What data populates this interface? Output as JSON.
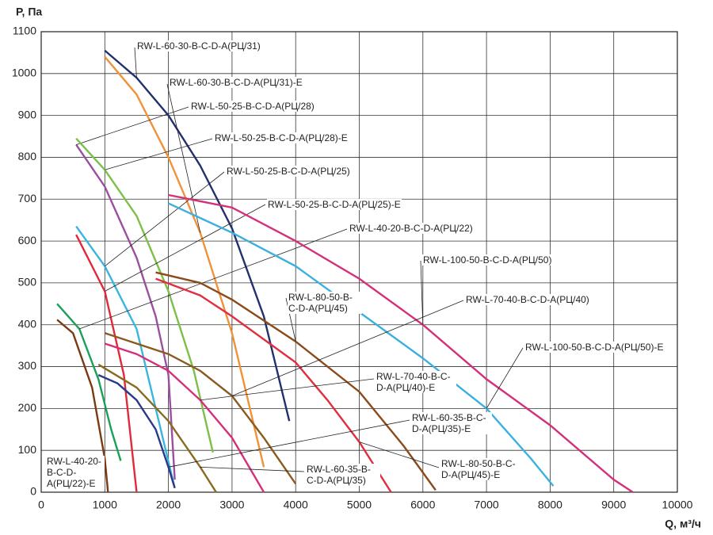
{
  "chart_data": {
    "type": "line",
    "ylabel": "P, Па",
    "xlabel": "Q, м³/ч",
    "xlim": [
      0,
      10000
    ],
    "xticks": [
      0,
      1000,
      2000,
      3000,
      4000,
      5000,
      6000,
      7000,
      8000,
      9000,
      10000
    ],
    "ylim": [
      0,
      1100
    ],
    "yticks": [
      0,
      100,
      200,
      300,
      400,
      500,
      600,
      700,
      800,
      900,
      1000,
      1100
    ],
    "grid": true,
    "series": [
      {
        "name": "RW-L-60-30-B-C-D-A(РЦ/31)",
        "color": "#22306e",
        "x": [
          1000,
          1500,
          2000,
          2500,
          3000,
          3500,
          3900
        ],
        "values": [
          1055,
          990,
          900,
          780,
          630,
          420,
          170
        ]
      },
      {
        "name": "RW-L-60-30-B-C-D-A(РЦ/31)-E",
        "color": "#f0923a",
        "x": [
          1000,
          1500,
          2000,
          2500,
          3000,
          3500
        ],
        "values": [
          1040,
          950,
          800,
          620,
          380,
          60
        ]
      },
      {
        "name": "RW-L-50-25-B-C-D-A(РЦ/28)",
        "color": "#9b4fa0",
        "x": [
          550,
          1000,
          1500,
          1800,
          2000,
          2100
        ],
        "values": [
          830,
          730,
          560,
          420,
          280,
          30
        ]
      },
      {
        "name": "RW-L-50-25-B-C-D-A(РЦ/28)-E",
        "color": "#7cc04a",
        "x": [
          550,
          1000,
          1500,
          2000,
          2400,
          2700
        ],
        "values": [
          845,
          770,
          660,
          480,
          290,
          95
        ]
      },
      {
        "name": "RW-L-50-25-B-C-D-A(РЦ/25)",
        "color": "#39b5e0",
        "x": [
          550,
          1000,
          1500,
          1800,
          2100
        ],
        "values": [
          635,
          540,
          390,
          200,
          10
        ]
      },
      {
        "name": "RW-L-50-25-B-C-D-A(РЦ/25)-E",
        "color": "#e02a3a",
        "x": [
          550,
          1000,
          1300,
          1500
        ],
        "values": [
          615,
          480,
          280,
          0
        ]
      },
      {
        "name": "RW-L-40-20-B-C-D-A(РЦ/22)",
        "color": "#1aa05a",
        "x": [
          250,
          600,
          900,
          1100,
          1250
        ],
        "values": [
          450,
          390,
          270,
          150,
          75
        ]
      },
      {
        "name": "RW-L-40-20-B-C-D-A(РЦ/22)-E",
        "color": "#7a3a12",
        "x": [
          250,
          500,
          800,
          1000,
          1050
        ],
        "values": [
          412,
          380,
          250,
          80,
          0
        ]
      },
      {
        "name": "RW-L-100-50-B-C-D-A(РЦ/50)",
        "color": "#d4307a",
        "x": [
          2000,
          3000,
          4000,
          5000,
          6000,
          7000,
          8000,
          9000,
          9300
        ],
        "values": [
          710,
          680,
          600,
          510,
          400,
          270,
          160,
          30,
          0
        ]
      },
      {
        "name": "RW-L-100-50-B-C-D-A(РЦ/50)-E",
        "color": "#3ab0e0",
        "x": [
          2000,
          3000,
          4000,
          5000,
          6000,
          7000,
          7700,
          8050
        ],
        "values": [
          690,
          620,
          540,
          430,
          320,
          200,
          80,
          15
        ]
      },
      {
        "name": "RW-L-80-50-B-C-D-A(РЦ/45)",
        "color": "#8b4a1a",
        "x": [
          1800,
          2500,
          3000,
          4000,
          5000,
          5700,
          6200
        ],
        "values": [
          525,
          500,
          460,
          360,
          240,
          110,
          5
        ]
      },
      {
        "name": "RW-L-80-50-B-C-D-A(РЦ/45)-E",
        "color": "#e03040",
        "x": [
          1800,
          2500,
          3000,
          4000,
          4500,
          5000,
          5500
        ],
        "values": [
          510,
          470,
          420,
          310,
          220,
          120,
          0
        ]
      },
      {
        "name": "RW-L-70-40-B-C-D-A(РЦ/40)",
        "color": "#8a5a20",
        "x": [
          1000,
          2000,
          2500,
          3000,
          3500,
          4000
        ],
        "values": [
          380,
          330,
          290,
          230,
          130,
          20
        ]
      },
      {
        "name": "RW-L-70-40-B-C-D-A(РЦ/40)-E",
        "color": "#d4307a",
        "x": [
          1000,
          1500,
          2000,
          2500,
          3000,
          3500
        ],
        "values": [
          355,
          330,
          290,
          220,
          130,
          0
        ]
      },
      {
        "name": "RW-L-60-35-B-C-D-A(РЦ/35)",
        "color": "#8a6a20",
        "x": [
          900,
          1500,
          2000,
          2500,
          2750
        ],
        "values": [
          305,
          250,
          170,
          60,
          0
        ]
      },
      {
        "name": "RW-L-60-35-B-C-D-A(РЦ/35)-E",
        "color": "#2a3a8a",
        "x": [
          900,
          1200,
          1500,
          1800,
          2000,
          2100
        ],
        "values": [
          280,
          260,
          220,
          150,
          60,
          10
        ]
      }
    ]
  }
}
